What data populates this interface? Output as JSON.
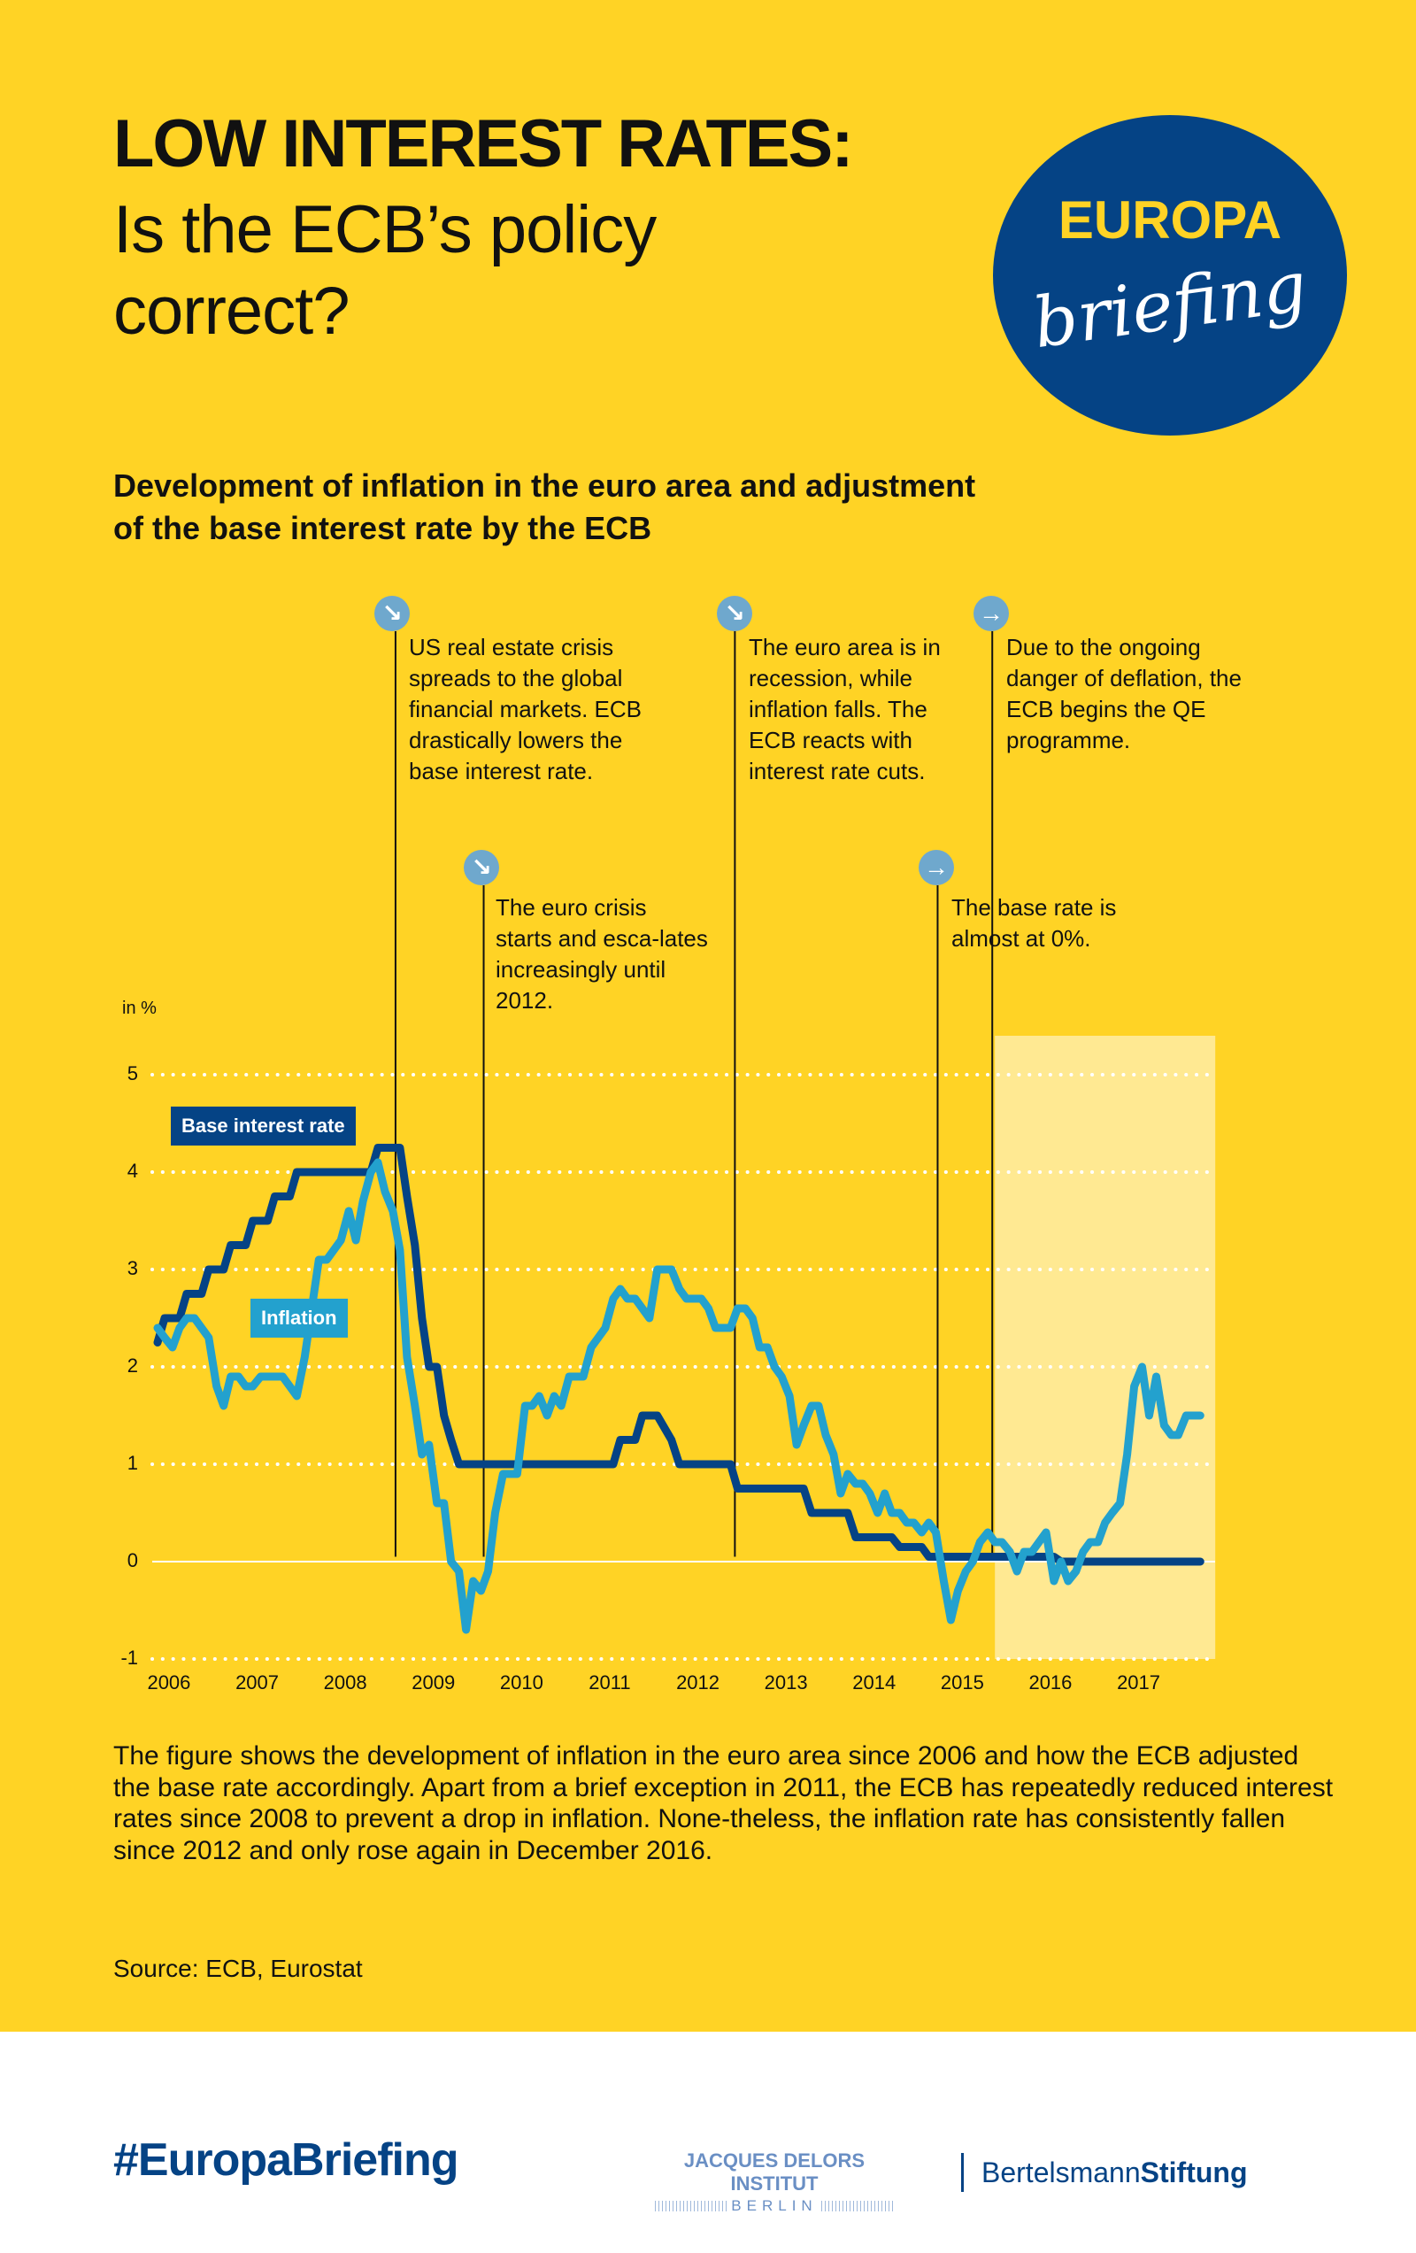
{
  "header": {
    "title_line1": "LOW INTEREST RATES:",
    "title_line2": "Is the ECB’s policy correct?",
    "logo_top": "EUROPA",
    "logo_script": "briefing"
  },
  "subtitle": "Development of inflation in the euro area and adjustment of the base interest rate by the ECB",
  "annotations": [
    {
      "icon": "arrow-down-right-icon",
      "glyph": "↘",
      "text": "US real estate crisis spreads to the global financial markets. ECB drastically lowers the base interest rate."
    },
    {
      "icon": "arrow-down-right-icon",
      "glyph": "↘",
      "text": "The euro crisis starts and esca-lates increasingly until 2012."
    },
    {
      "icon": "arrow-down-right-icon",
      "glyph": "↘",
      "text": "The euro area is in recession, while inflation falls. The ECB reacts with interest rate cuts."
    },
    {
      "icon": "arrow-right-icon",
      "glyph": "→",
      "text": "The base rate is almost at 0%."
    },
    {
      "icon": "arrow-right-icon",
      "glyph": "→",
      "text": "Due to the ongoing danger of deflation, the ECB begins the QE programme."
    }
  ],
  "chart_data": {
    "type": "line",
    "title": "Development of inflation in the euro area and adjustment of the base interest rate by the ECB",
    "ylabel": "in %",
    "xlabel": "",
    "ylim": [
      -1,
      5
    ],
    "xlim": [
      2006.0,
      2018.0
    ],
    "yticks": [
      "5",
      "4",
      "3",
      "2",
      "1",
      "0",
      "-1"
    ],
    "ytick_values": [
      5,
      4,
      3,
      2,
      1,
      0,
      -1
    ],
    "xticks": [
      "2006",
      "2007",
      "2008",
      "2009",
      "2010",
      "2011",
      "2012",
      "2013",
      "2014",
      "2015",
      "2016",
      "2017"
    ],
    "xtick_values": [
      2006,
      2007,
      2008,
      2009,
      2010,
      2011,
      2012,
      2013,
      2014,
      2015,
      2016,
      2017
    ],
    "grid": "horizontal dotted",
    "highlight_region": {
      "x_start": 2015.5,
      "x_end": 2018.0,
      "meaning": "QE programme period"
    },
    "event_markers": [
      2008.7,
      2009.7,
      2012.55,
      2014.85,
      2015.47
    ],
    "series": [
      {
        "name": "Base interest rate",
        "color": "#054385",
        "x": [
          2006.0,
          2006.08,
          2006.25,
          2006.33,
          2006.5,
          2006.58,
          2006.75,
          2006.83,
          2007.0,
          2007.08,
          2007.25,
          2007.33,
          2007.5,
          2007.58,
          2007.75,
          2008.0,
          2008.25,
          2008.42,
          2008.5,
          2008.62,
          2008.75,
          2008.83,
          2008.92,
          2009.0,
          2009.08,
          2009.17,
          2009.25,
          2009.33,
          2009.42,
          2010.0,
          2011.0,
          2011.17,
          2011.25,
          2011.42,
          2011.5,
          2011.67,
          2011.83,
          2011.92,
          2012.0,
          2012.5,
          2012.58,
          2012.67,
          2013.0,
          2013.33,
          2013.42,
          2013.83,
          2013.92,
          2014.33,
          2014.42,
          2014.67,
          2014.75,
          2015.0,
          2016.0,
          2016.17,
          2016.25,
          2017.0,
          2017.83
        ],
        "values": [
          2.25,
          2.5,
          2.5,
          2.75,
          2.75,
          3.0,
          3.0,
          3.25,
          3.25,
          3.5,
          3.5,
          3.75,
          3.75,
          4.0,
          4.0,
          4.0,
          4.0,
          4.0,
          4.25,
          4.25,
          4.25,
          3.75,
          3.25,
          2.5,
          2.0,
          2.0,
          1.5,
          1.25,
          1.0,
          1.0,
          1.0,
          1.0,
          1.25,
          1.25,
          1.5,
          1.5,
          1.25,
          1.0,
          1.0,
          1.0,
          0.75,
          0.75,
          0.75,
          0.75,
          0.5,
          0.5,
          0.25,
          0.25,
          0.15,
          0.15,
          0.05,
          0.05,
          0.05,
          0.05,
          0.0,
          0.0,
          0.0
        ]
      },
      {
        "name": "Inflation",
        "color": "#23A1CE",
        "x": [
          2006.0,
          2006.08,
          2006.17,
          2006.25,
          2006.33,
          2006.42,
          2006.5,
          2006.58,
          2006.67,
          2006.75,
          2006.83,
          2006.92,
          2007.0,
          2007.08,
          2007.17,
          2007.25,
          2007.33,
          2007.42,
          2007.5,
          2007.58,
          2007.67,
          2007.75,
          2007.83,
          2007.92,
          2008.0,
          2008.08,
          2008.17,
          2008.25,
          2008.33,
          2008.42,
          2008.5,
          2008.58,
          2008.67,
          2008.75,
          2008.83,
          2008.92,
          2009.0,
          2009.08,
          2009.17,
          2009.25,
          2009.33,
          2009.42,
          2009.5,
          2009.58,
          2009.67,
          2009.75,
          2009.83,
          2009.92,
          2010.0,
          2010.08,
          2010.17,
          2010.25,
          2010.33,
          2010.42,
          2010.5,
          2010.58,
          2010.67,
          2010.75,
          2010.83,
          2010.92,
          2011.0,
          2011.08,
          2011.17,
          2011.25,
          2011.33,
          2011.42,
          2011.5,
          2011.58,
          2011.67,
          2011.75,
          2011.83,
          2011.92,
          2012.0,
          2012.08,
          2012.17,
          2012.25,
          2012.33,
          2012.42,
          2012.5,
          2012.58,
          2012.67,
          2012.75,
          2012.83,
          2012.92,
          2013.0,
          2013.08,
          2013.17,
          2013.25,
          2013.33,
          2013.42,
          2013.5,
          2013.58,
          2013.67,
          2013.75,
          2013.83,
          2013.92,
          2014.0,
          2014.08,
          2014.17,
          2014.25,
          2014.33,
          2014.42,
          2014.5,
          2014.58,
          2014.67,
          2014.75,
          2014.83,
          2014.92,
          2015.0,
          2015.08,
          2015.17,
          2015.25,
          2015.33,
          2015.42,
          2015.5,
          2015.58,
          2015.67,
          2015.75,
          2015.83,
          2015.92,
          2016.0,
          2016.08,
          2016.17,
          2016.25,
          2016.33,
          2016.42,
          2016.5,
          2016.58,
          2016.67,
          2016.75,
          2016.83,
          2016.92,
          2017.0,
          2017.08,
          2017.17,
          2017.25,
          2017.33,
          2017.42,
          2017.5,
          2017.58,
          2017.67,
          2017.83
        ],
        "values": [
          2.4,
          2.3,
          2.2,
          2.4,
          2.5,
          2.5,
          2.4,
          2.3,
          1.8,
          1.6,
          1.9,
          1.9,
          1.8,
          1.8,
          1.9,
          1.9,
          1.9,
          1.9,
          1.8,
          1.7,
          2.1,
          2.6,
          3.1,
          3.1,
          3.2,
          3.3,
          3.6,
          3.3,
          3.7,
          4.0,
          4.1,
          3.8,
          3.6,
          3.2,
          2.1,
          1.6,
          1.1,
          1.2,
          0.6,
          0.6,
          0.0,
          -0.1,
          -0.7,
          -0.2,
          -0.3,
          -0.1,
          0.5,
          0.9,
          0.9,
          0.9,
          1.6,
          1.6,
          1.7,
          1.5,
          1.7,
          1.6,
          1.9,
          1.9,
          1.9,
          2.2,
          2.3,
          2.4,
          2.7,
          2.8,
          2.7,
          2.7,
          2.6,
          2.5,
          3.0,
          3.0,
          3.0,
          2.8,
          2.7,
          2.7,
          2.7,
          2.6,
          2.4,
          2.4,
          2.4,
          2.6,
          2.6,
          2.5,
          2.2,
          2.2,
          2.0,
          1.9,
          1.7,
          1.2,
          1.4,
          1.6,
          1.6,
          1.3,
          1.1,
          0.7,
          0.9,
          0.8,
          0.8,
          0.7,
          0.5,
          0.7,
          0.5,
          0.5,
          0.4,
          0.4,
          0.3,
          0.4,
          0.3,
          -0.2,
          -0.6,
          -0.3,
          -0.1,
          0.0,
          0.2,
          0.3,
          0.2,
          0.2,
          0.1,
          -0.1,
          0.1,
          0.1,
          0.2,
          0.3,
          -0.2,
          0.0,
          -0.2,
          -0.1,
          0.1,
          0.2,
          0.2,
          0.4,
          0.5,
          0.6,
          1.1,
          1.8,
          2.0,
          1.5,
          1.9,
          1.4,
          1.3,
          1.3,
          1.5,
          1.5
        ]
      }
    ],
    "legend": [
      {
        "label": "Base interest rate",
        "color": "#054385"
      },
      {
        "label": "Inflation",
        "color": "#23A1CE"
      }
    ]
  },
  "body_text": "The figure shows the development of inflation in the euro area since 2006 and how the ECB adjusted the base rate accordingly. Apart from a brief exception in 2011, the ECB has repeatedly reduced interest rates since 2008 to prevent a drop in inflation. None-theless, the inflation rate has consistently fallen since 2012 and only rose again in December 2016.",
  "source": "Source: ECB, Eurostat",
  "footer": {
    "hashtag": "#EuropaBriefing",
    "jdi_top": "JACQUES DELORS INSTITUT",
    "jdi_bottom": "BERLIN",
    "bs_regular": "Bertelsmann",
    "bs_bold": "Stiftung"
  },
  "colors": {
    "background": "#FFD325",
    "highlight": "#FFE992",
    "navy": "#054385",
    "cyan": "#23A1CE",
    "icon": "#6FA8CD"
  }
}
